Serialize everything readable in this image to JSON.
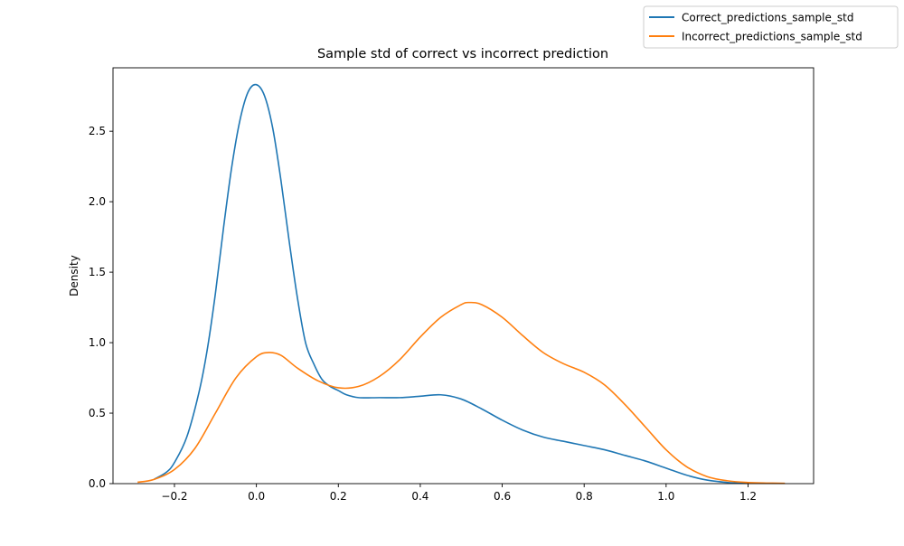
{
  "chart_data": {
    "type": "line",
    "title": "Sample std of correct vs incorrect prediction",
    "xlabel": "",
    "ylabel": "Density",
    "xlim": [
      -0.35,
      1.36
    ],
    "ylim": [
      0,
      2.95
    ],
    "xticks": [
      -0.2,
      0.0,
      0.2,
      0.4,
      0.6,
      0.8,
      1.0,
      1.2
    ],
    "xtick_labels": [
      "−0.2",
      "0.0",
      "0.2",
      "0.4",
      "0.6",
      "0.8",
      "1.0",
      "1.2"
    ],
    "yticks": [
      0.0,
      0.5,
      1.0,
      1.5,
      2.0,
      2.5
    ],
    "ytick_labels": [
      "0.0",
      "0.5",
      "1.0",
      "1.5",
      "2.0",
      "2.5"
    ],
    "grid": false,
    "legend_position": "top-right",
    "series": [
      {
        "name": "Correct_predictions_sample_std",
        "color": "#1f77b4",
        "x": [
          -0.25,
          -0.22,
          -0.2,
          -0.17,
          -0.14,
          -0.12,
          -0.1,
          -0.08,
          -0.06,
          -0.04,
          -0.02,
          0.0,
          0.02,
          0.04,
          0.06,
          0.08,
          0.1,
          0.12,
          0.14,
          0.16,
          0.18,
          0.2,
          0.22,
          0.25,
          0.3,
          0.35,
          0.4,
          0.45,
          0.5,
          0.55,
          0.6,
          0.65,
          0.7,
          0.75,
          0.8,
          0.85,
          0.9,
          0.95,
          1.0,
          1.05,
          1.1,
          1.15,
          1.2
        ],
        "y": [
          0.03,
          0.08,
          0.15,
          0.33,
          0.65,
          0.95,
          1.35,
          1.82,
          2.25,
          2.58,
          2.78,
          2.83,
          2.75,
          2.52,
          2.15,
          1.72,
          1.32,
          1.0,
          0.85,
          0.74,
          0.69,
          0.66,
          0.63,
          0.61,
          0.61,
          0.61,
          0.62,
          0.63,
          0.6,
          0.53,
          0.45,
          0.38,
          0.33,
          0.3,
          0.27,
          0.24,
          0.2,
          0.16,
          0.11,
          0.06,
          0.025,
          0.008,
          0.002
        ]
      },
      {
        "name": "Incorrect_predictions_sample_std",
        "color": "#ff7f0e",
        "x": [
          -0.29,
          -0.25,
          -0.2,
          -0.15,
          -0.1,
          -0.05,
          0.0,
          0.03,
          0.06,
          0.1,
          0.15,
          0.2,
          0.25,
          0.3,
          0.35,
          0.4,
          0.45,
          0.5,
          0.52,
          0.55,
          0.6,
          0.65,
          0.7,
          0.75,
          0.8,
          0.85,
          0.9,
          0.95,
          1.0,
          1.05,
          1.1,
          1.15,
          1.2,
          1.25,
          1.29
        ],
        "y": [
          0.01,
          0.03,
          0.1,
          0.25,
          0.5,
          0.75,
          0.9,
          0.93,
          0.91,
          0.82,
          0.73,
          0.68,
          0.69,
          0.76,
          0.88,
          1.04,
          1.18,
          1.27,
          1.285,
          1.27,
          1.18,
          1.05,
          0.93,
          0.85,
          0.79,
          0.7,
          0.56,
          0.4,
          0.24,
          0.12,
          0.05,
          0.02,
          0.008,
          0.004,
          0.002
        ]
      }
    ]
  }
}
